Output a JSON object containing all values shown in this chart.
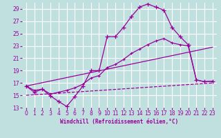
{
  "xlabel": "Windchill (Refroidissement éolien,°C)",
  "background_color": "#c0e0e0",
  "grid_color": "#ffffff",
  "line_color": "#990099",
  "xlim": [
    -0.5,
    23.5
  ],
  "ylim": [
    13,
    30
  ],
  "yticks": [
    13,
    15,
    17,
    19,
    21,
    23,
    25,
    27,
    29
  ],
  "xticks": [
    0,
    1,
    2,
    3,
    4,
    5,
    6,
    7,
    8,
    9,
    10,
    11,
    12,
    13,
    14,
    15,
    16,
    17,
    18,
    19,
    20,
    21,
    22,
    23
  ],
  "series1_x": [
    0,
    1,
    2,
    3,
    4,
    5,
    6,
    7,
    8,
    9,
    10,
    11,
    12,
    13,
    14,
    15,
    16,
    17,
    18,
    19,
    20,
    21,
    22,
    23
  ],
  "series1_y": [
    16.5,
    15.5,
    16.0,
    14.9,
    14.0,
    13.2,
    14.8,
    16.5,
    19.0,
    19.0,
    24.5,
    24.5,
    26.0,
    27.8,
    29.3,
    29.8,
    29.3,
    28.8,
    26.0,
    24.5,
    23.2,
    17.5,
    17.2,
    17.3
  ],
  "series2_x": [
    0,
    1,
    2,
    3,
    4,
    5,
    6,
    7,
    8,
    9,
    10,
    11,
    12,
    13,
    14,
    15,
    16,
    17,
    18,
    19,
    20,
    21,
    22,
    23
  ],
  "series2_y": [
    16.5,
    15.8,
    16.0,
    15.2,
    15.5,
    15.8,
    16.2,
    16.8,
    17.8,
    18.2,
    19.5,
    20.0,
    20.8,
    21.8,
    22.5,
    23.2,
    23.8,
    24.2,
    23.5,
    23.2,
    23.0,
    17.5,
    17.2,
    17.3
  ],
  "series3_x": [
    0,
    23
  ],
  "series3_y": [
    16.5,
    22.8
  ],
  "series4_x": [
    0,
    23
  ],
  "series4_y": [
    15.0,
    17.0
  ]
}
